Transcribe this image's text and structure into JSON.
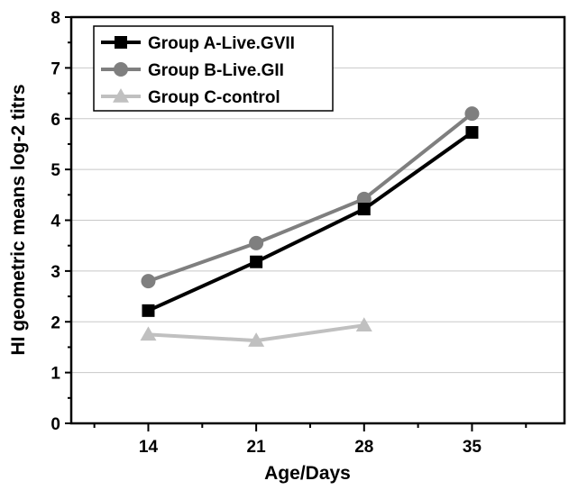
{
  "chart_data": {
    "type": "line",
    "xlabel": "Age/Days",
    "ylabel": "HI geometric means log-2 titrs",
    "categories": [
      "14",
      "21",
      "28",
      "35"
    ],
    "x": [
      14,
      21,
      28,
      35
    ],
    "xlim": [
      9,
      41
    ],
    "ylim": [
      0,
      8
    ],
    "yticks": [
      "0",
      "1",
      "2",
      "3",
      "4",
      "5",
      "6",
      "7",
      "8"
    ],
    "grid": "horizontal",
    "legend_position": "top-left",
    "series": [
      {
        "name": "Group A-Live.GVII",
        "x": [
          14,
          21,
          28,
          35
        ],
        "values": [
          2.22,
          3.18,
          4.22,
          5.73
        ],
        "color": "#000000",
        "marker": "square"
      },
      {
        "name": "Group B-Live.GII",
        "x": [
          14,
          21,
          28,
          35
        ],
        "values": [
          2.8,
          3.55,
          4.42,
          6.1
        ],
        "color": "#7f7f7f",
        "marker": "circle"
      },
      {
        "name": "Group C-control",
        "x": [
          14,
          21,
          28
        ],
        "values": [
          1.75,
          1.63,
          1.93
        ],
        "color": "#c0c0c0",
        "marker": "triangle"
      }
    ]
  }
}
